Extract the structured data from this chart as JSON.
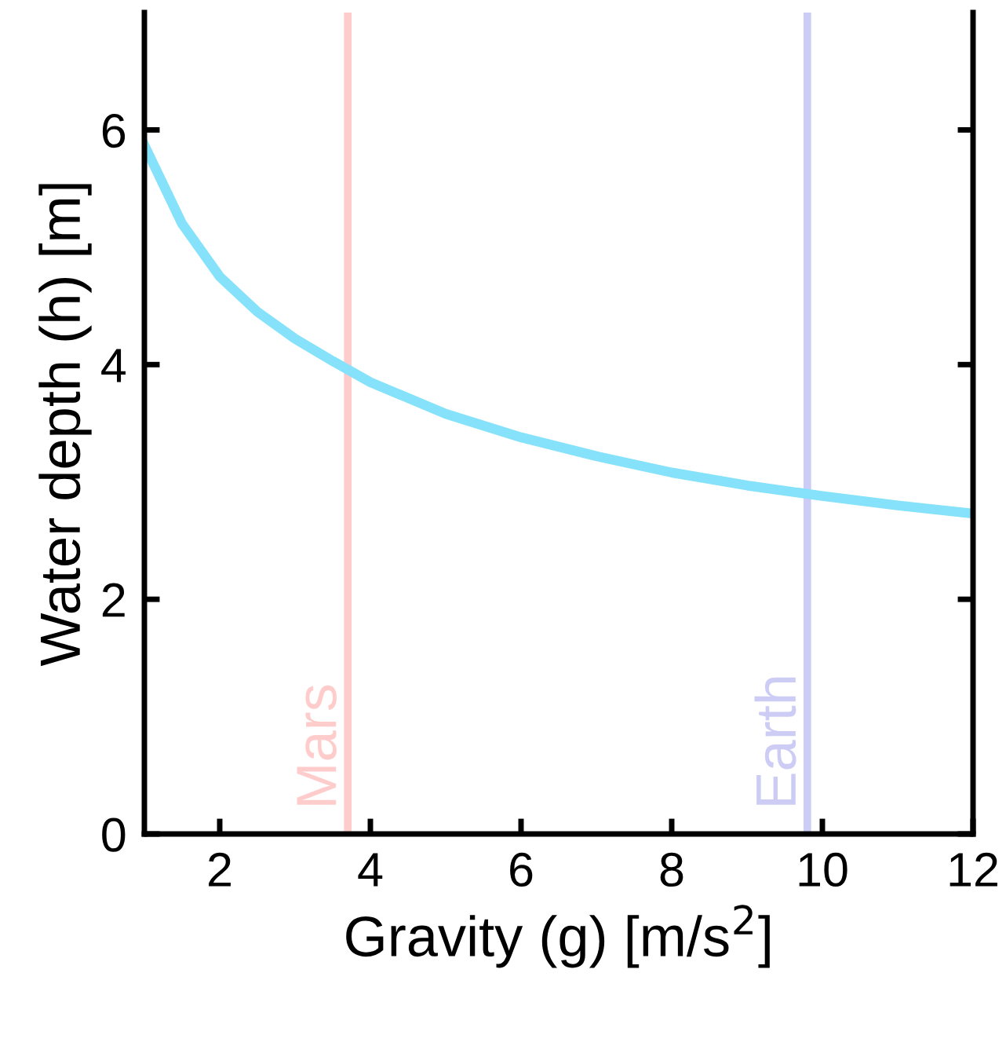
{
  "chart_data": {
    "type": "line",
    "xlabel": "Gravity (g) [m/s$^{2}$]",
    "ylabel": "Water depth (h) [m]",
    "x": [
      1,
      1.5,
      2,
      2.5,
      3,
      3.5,
      4,
      5,
      6,
      7,
      8,
      9,
      10,
      11,
      12
    ],
    "series": [
      {
        "color": "#85e2fa",
        "values": [
          5.87,
          5.2,
          4.75,
          4.45,
          4.22,
          4.03,
          3.85,
          3.58,
          3.38,
          3.22,
          3.08,
          2.97,
          2.88,
          2.8,
          2.73
        ]
      }
    ],
    "xlim": [
      1,
      12
    ],
    "xticks": [
      2,
      4,
      6,
      8,
      10,
      12
    ],
    "ylim": [
      0,
      7
    ],
    "yticks": [
      0,
      2,
      4,
      6
    ],
    "ref_lines": [
      {
        "axis": "x",
        "value": 3.7,
        "label": "Mars",
        "color": "#ffcccc"
      },
      {
        "axis": "x",
        "value": 9.8,
        "label": "Earth",
        "color": "#ccccf5"
      }
    ],
    "grid": false,
    "legend": false
  }
}
